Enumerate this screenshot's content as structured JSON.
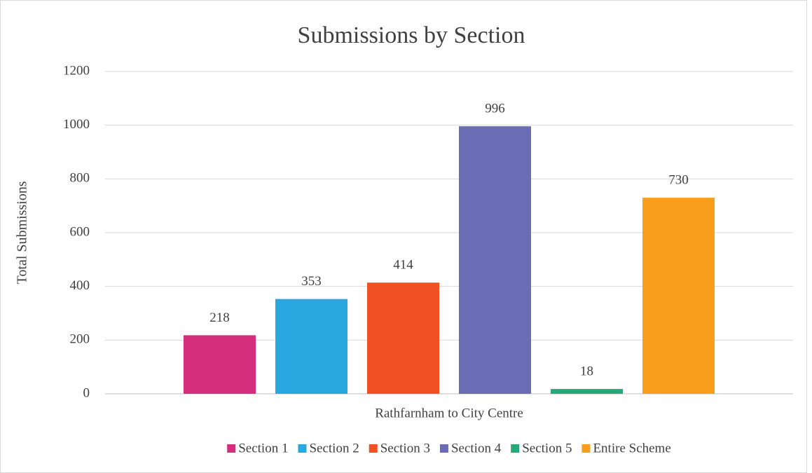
{
  "chart_data": {
    "type": "bar",
    "title": "Submissions by Section",
    "ylabel": "Total Submissions",
    "categories": [
      "Rathfarnham to City Centre"
    ],
    "series": [
      {
        "name": "Section 1",
        "color": "#d42e7c",
        "values": [
          218
        ]
      },
      {
        "name": "Section 2",
        "color": "#29a8e0",
        "values": [
          353
        ]
      },
      {
        "name": "Section 3",
        "color": "#f05023",
        "values": [
          414
        ]
      },
      {
        "name": "Section 4",
        "color": "#6a6db4",
        "values": [
          996
        ]
      },
      {
        "name": "Section 5",
        "color": "#27a878",
        "values": [
          18
        ]
      },
      {
        "name": "Entire Scheme",
        "color": "#f99d1c",
        "values": [
          730
        ]
      }
    ],
    "ylim": [
      0,
      1200
    ],
    "yticks": [
      0,
      200,
      400,
      600,
      800,
      1000,
      1200
    ],
    "grid": true,
    "legend": "bottom"
  }
}
